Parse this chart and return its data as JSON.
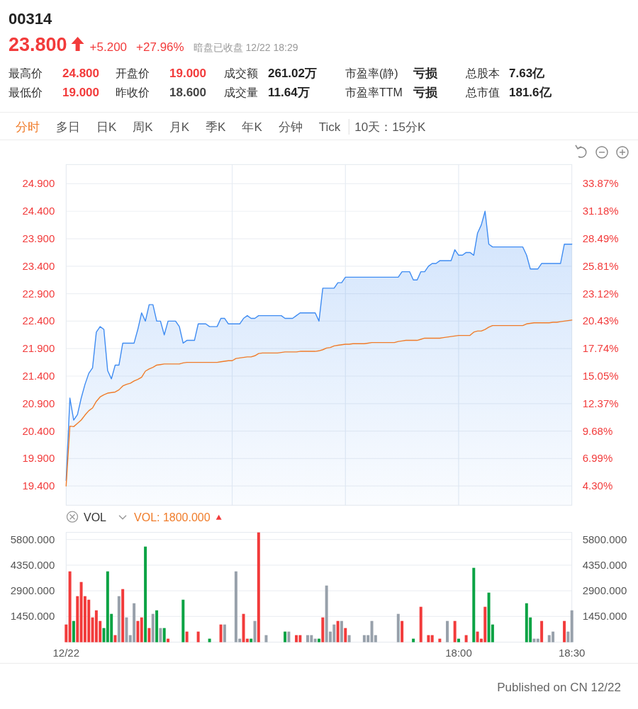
{
  "chart_data": [
    {
      "type": "other",
      "title": "00314",
      "annotations": [
        "23.800",
        "+5.200",
        "+27.96%",
        "暗盘已收盘 12/22 18:29"
      ],
      "colors": [
        "#f23b3b",
        "#f23b3b",
        "#f23b3b",
        "#999999"
      ]
    },
    {
      "type": "other",
      "annotations": [
        "最高价",
        "24.800",
        "开盘价",
        "19.000",
        "成交额",
        "261.02万",
        "市盈率(静)",
        "亏损",
        "总股本",
        "7.63亿",
        "最低价",
        "19.000",
        "昨收价",
        "18.600",
        "成交量",
        "11.64万",
        "市盈率TTM",
        "亏损",
        "总市值",
        "181.6亿"
      ],
      "colors": [
        "#333333",
        "#f23b3b",
        "#333333",
        "#f23b3b",
        "#333333",
        "#222222",
        "#333333",
        "#222222",
        "#333333",
        "#222222",
        "#333333",
        "#f23b3b",
        "#333333",
        "#444444",
        "#333333",
        "#222222",
        "#333333",
        "#222222",
        "#333333",
        "#222222"
      ]
    },
    {
      "type": "other",
      "annotations": [
        "分时",
        "多日",
        "日K",
        "周K",
        "月K",
        "季K",
        "年K",
        "分钟",
        "Tick",
        "10天：15分K"
      ],
      "colors": [
        "#f07c2a",
        "#555555",
        "#555555",
        "#555555",
        "#555555",
        "#555555",
        "#555555",
        "#555555",
        "#555555",
        "#555555"
      ]
    },
    {
      "type": "line",
      "x": [
        16.2667,
        16.2833,
        16.3,
        16.3167,
        16.3333,
        16.35,
        16.3667,
        16.3833,
        16.4,
        16.4167,
        16.4333,
        16.45,
        16.4667,
        16.4833,
        16.5,
        16.5167,
        16.5333,
        16.55,
        16.5667,
        16.5833,
        16.6,
        16.6167,
        16.6333,
        16.65,
        16.6667,
        16.6833,
        16.7,
        16.7167,
        16.7333,
        16.75,
        16.7667,
        16.7833,
        16.8,
        16.8167,
        16.8333,
        16.85,
        16.8667,
        16.8833,
        16.9,
        16.9167,
        16.9333,
        16.95,
        16.9667,
        16.9833,
        17,
        17.0167,
        17.0333,
        17.05,
        17.0667,
        17.0833,
        17.1,
        17.1167,
        17.1333,
        17.15,
        17.1667,
        17.1833,
        17.2,
        17.2167,
        17.2333,
        17.25,
        17.2667,
        17.2833,
        17.3,
        17.3167,
        17.3333,
        17.35,
        17.3667,
        17.3833,
        17.4,
        17.4167,
        17.4333,
        17.45,
        17.4667,
        17.4833,
        17.5,
        17.5167,
        17.5333,
        17.55,
        17.5667,
        17.5833,
        17.6,
        17.6167,
        17.6333,
        17.65,
        17.6667,
        17.6833,
        17.7,
        17.7167,
        17.7333,
        17.75,
        17.7667,
        17.7833,
        17.8,
        17.8167,
        17.8333,
        17.85,
        17.8667,
        17.8833,
        17.9,
        17.9167,
        17.9333,
        17.95,
        17.9667,
        17.9833,
        18,
        18.0167,
        18.0333,
        18.05,
        18.0667,
        18.0833,
        18.1,
        18.1167,
        18.1333,
        18.15,
        18.1667,
        18.1833,
        18.2,
        18.2167,
        18.2333,
        18.25,
        18.2667,
        18.2833,
        18.3,
        18.3167,
        18.3333,
        18.35,
        18.3667,
        18.3833,
        18.4,
        18.4167,
        18.4333,
        18.45,
        18.4667,
        18.4833,
        18.5
      ],
      "series": [
        {
          "type": "area",
          "color": "#3f8cf2",
          "values": [
            19.5,
            21.0,
            20.6,
            20.7,
            21.0,
            21.25,
            21.45,
            21.55,
            22.2,
            22.3,
            22.25,
            21.5,
            21.35,
            21.6,
            21.6,
            22.0,
            22.0,
            22.0,
            22.0,
            22.25,
            22.55,
            22.4,
            22.7,
            22.7,
            22.4,
            22.4,
            22.15,
            22.4,
            22.4,
            22.4,
            22.3,
            22.0,
            22.05,
            22.05,
            22.05,
            22.35,
            22.35,
            22.35,
            22.3,
            22.3,
            22.3,
            22.45,
            22.45,
            22.35,
            22.35,
            22.35,
            22.35,
            22.45,
            22.5,
            22.45,
            22.45,
            22.5,
            22.5,
            22.5,
            22.5,
            22.5,
            22.5,
            22.5,
            22.45,
            22.45,
            22.45,
            22.5,
            22.55,
            22.55,
            22.55,
            22.55,
            22.55,
            22.4,
            23.0,
            23.0,
            23.0,
            23.0,
            23.1,
            23.1,
            23.2,
            23.2,
            23.2,
            23.2,
            23.2,
            23.2,
            23.2,
            23.2,
            23.2,
            23.2,
            23.2,
            23.2,
            23.2,
            23.2,
            23.2,
            23.3,
            23.3,
            23.3,
            23.15,
            23.15,
            23.3,
            23.3,
            23.4,
            23.45,
            23.45,
            23.5,
            23.5,
            23.5,
            23.5,
            23.7,
            23.6,
            23.6,
            23.65,
            23.65,
            23.6,
            24.0,
            24.15,
            24.4,
            23.8,
            23.75,
            23.75,
            23.75,
            23.75,
            23.75,
            23.75,
            23.75,
            23.75,
            23.75,
            23.6,
            23.35,
            23.35,
            23.35,
            23.45,
            23.45,
            23.45,
            23.45,
            23.45,
            23.45,
            23.8,
            23.8,
            23.8
          ]
        },
        {
          "color": "#f07c2a",
          "values": [
            19.4,
            20.49,
            20.48,
            20.54,
            20.6,
            20.69,
            20.77,
            20.82,
            20.94,
            21.02,
            21.06,
            21.09,
            21.1,
            21.11,
            21.15,
            21.22,
            21.25,
            21.27,
            21.31,
            21.34,
            21.38,
            21.49,
            21.53,
            21.56,
            21.6,
            21.61,
            21.62,
            21.62,
            21.62,
            21.62,
            21.62,
            21.64,
            21.65,
            21.65,
            21.65,
            21.65,
            21.65,
            21.65,
            21.65,
            21.65,
            21.65,
            21.66,
            21.67,
            21.68,
            21.68,
            21.72,
            21.73,
            21.74,
            21.75,
            21.75,
            21.77,
            21.81,
            21.82,
            21.82,
            21.82,
            21.82,
            21.82,
            21.83,
            21.84,
            21.84,
            21.84,
            21.84,
            21.85,
            21.85,
            21.85,
            21.85,
            21.85,
            21.86,
            21.88,
            21.91,
            21.92,
            21.95,
            21.96,
            21.97,
            21.98,
            21.98,
            21.99,
            21.99,
            21.99,
            21.99,
            22.0,
            22.01,
            22.01,
            22.01,
            22.01,
            22.01,
            22.01,
            22.01,
            22.03,
            22.04,
            22.05,
            22.05,
            22.05,
            22.05,
            22.07,
            22.09,
            22.09,
            22.09,
            22.09,
            22.09,
            22.1,
            22.11,
            22.12,
            22.13,
            22.14,
            22.14,
            22.14,
            22.14,
            22.2,
            22.22,
            22.22,
            22.25,
            22.29,
            22.32,
            22.32,
            22.32,
            22.32,
            22.32,
            22.32,
            22.32,
            22.32,
            22.32,
            22.35,
            22.36,
            22.37,
            22.37,
            22.37,
            22.37,
            22.37,
            22.38,
            22.38,
            22.39,
            22.4,
            22.41,
            22.42
          ]
        }
      ],
      "xlim": [
        16.2667,
        18.5
      ],
      "xticks": [
        {
          "value": 17,
          "label": null
        },
        {
          "value": 17.5,
          "label": null
        },
        {
          "value": 18,
          "label": null
        }
      ],
      "ylim": [
        19.05,
        25.25
      ],
      "yticks": [
        {
          "value": 19.4,
          "label": "19.400"
        },
        {
          "value": 19.9,
          "label": "19.900"
        },
        {
          "value": 20.4,
          "label": "20.400"
        },
        {
          "value": 20.9,
          "label": "20.900"
        },
        {
          "value": 21.4,
          "label": "21.400"
        },
        {
          "value": 21.9,
          "label": "21.900"
        },
        {
          "value": 22.4,
          "label": "22.400"
        },
        {
          "value": 22.9,
          "label": "22.900"
        },
        {
          "value": 23.4,
          "label": "23.400"
        },
        {
          "value": 23.9,
          "label": "23.900"
        },
        {
          "value": 24.4,
          "label": "24.400"
        },
        {
          "value": 24.9,
          "label": "24.900"
        }
      ],
      "y2lim": [
        2.42,
        35.75
      ],
      "y2ticks": [
        {
          "value": 4.3,
          "label": "4.30%"
        },
        {
          "value": 6.99,
          "label": "6.99%"
        },
        {
          "value": 9.68,
          "label": "9.68%"
        },
        {
          "value": 12.37,
          "label": "12.37%"
        },
        {
          "value": 15.05,
          "label": "15.05%"
        },
        {
          "value": 17.74,
          "label": "17.74%"
        },
        {
          "value": 20.43,
          "label": "20.43%"
        },
        {
          "value": 23.12,
          "label": "23.12%"
        },
        {
          "value": 25.81,
          "label": "25.81%"
        },
        {
          "value": 28.49,
          "label": "28.49%"
        },
        {
          "value": 31.18,
          "label": "31.18%"
        },
        {
          "value": 33.87,
          "label": "33.87%"
        }
      ],
      "grid": true,
      "tick_labels": "y"
    },
    {
      "type": "bar",
      "title": "VOL",
      "annotations": [
        "VOL: 1800.000"
      ],
      "x": [
        16.2667,
        16.2833,
        16.3,
        16.3167,
        16.3333,
        16.35,
        16.3667,
        16.3833,
        16.4,
        16.4167,
        16.4333,
        16.45,
        16.4667,
        16.4833,
        16.5,
        16.5167,
        16.5333,
        16.55,
        16.5667,
        16.5833,
        16.6,
        16.6167,
        16.6333,
        16.65,
        16.6667,
        16.6833,
        16.7,
        16.7167,
        16.7833,
        16.8,
        16.85,
        16.9,
        16.95,
        16.9667,
        17.0167,
        17.0333,
        17.05,
        17.0667,
        17.0833,
        17.1,
        17.1167,
        17.15,
        17.2333,
        17.25,
        17.2833,
        17.3,
        17.3333,
        17.35,
        17.3667,
        17.3833,
        17.4,
        17.4167,
        17.4333,
        17.45,
        17.4667,
        17.4833,
        17.5,
        17.5167,
        17.5833,
        17.6,
        17.6167,
        17.6333,
        17.7333,
        17.75,
        17.8,
        17.8333,
        17.8667,
        17.8833,
        17.9167,
        17.95,
        17.9833,
        18,
        18.0333,
        18.0667,
        18.0833,
        18.1,
        18.1167,
        18.1333,
        18.15,
        18.3,
        18.3167,
        18.3333,
        18.35,
        18.3667,
        18.4,
        18.4167,
        18.4667,
        18.4833,
        18.5
      ],
      "values": [
        1000,
        4000,
        1200,
        2600,
        3400,
        2600,
        2400,
        1400,
        1800,
        1200,
        800,
        4000,
        1600,
        400,
        2600,
        3000,
        1400,
        400,
        2200,
        1200,
        1400,
        5400,
        800,
        1600,
        1800,
        800,
        800,
        200,
        2400,
        600,
        600,
        200,
        1000,
        1000,
        4000,
        200,
        1600,
        200,
        200,
        1200,
        6200,
        400,
        600,
        600,
        400,
        400,
        400,
        400,
        200,
        200,
        1400,
        3200,
        600,
        1000,
        1200,
        1200,
        800,
        400,
        400,
        400,
        1200,
        400,
        1600,
        1200,
        200,
        2000,
        400,
        400,
        200,
        1200,
        1200,
        200,
        400,
        4200,
        600,
        200,
        2000,
        2800,
        1000,
        2200,
        1400,
        200,
        200,
        1200,
        400,
        600,
        1200,
        600,
        1800
      ],
      "colors": [
        "#f23b3b",
        "#f23b3b",
        "#0aa344",
        "#f23b3b",
        "#f23b3b",
        "#f23b3b",
        "#f23b3b",
        "#f23b3b",
        "#f23b3b",
        "#f23b3b",
        "#0aa344",
        "#0aa344",
        "#0aa344",
        "#f23b3b",
        "#98a1ab",
        "#f23b3b",
        "#98a1ab",
        "#98a1ab",
        "#98a1ab",
        "#f23b3b",
        "#f23b3b",
        "#0aa344",
        "#f23b3b",
        "#98a1ab",
        "#0aa344",
        "#98a1ab",
        "#0aa344",
        "#f23b3b",
        "#0aa344",
        "#f23b3b",
        "#f23b3b",
        "#0aa344",
        "#f23b3b",
        "#98a1ab",
        "#98a1ab",
        "#98a1ab",
        "#f23b3b",
        "#f23b3b",
        "#0aa344",
        "#98a1ab",
        "#f23b3b",
        "#98a1ab",
        "#0aa344",
        "#98a1ab",
        "#f23b3b",
        "#f23b3b",
        "#98a1ab",
        "#98a1ab",
        "#98a1ab",
        "#0aa344",
        "#f23b3b",
        "#98a1ab",
        "#98a1ab",
        "#98a1ab",
        "#f23b3b",
        "#98a1ab",
        "#f23b3b",
        "#98a1ab",
        "#98a1ab",
        "#98a1ab",
        "#98a1ab",
        "#98a1ab",
        "#98a1ab",
        "#f23b3b",
        "#0aa344",
        "#f23b3b",
        "#f23b3b",
        "#f23b3b",
        "#f23b3b",
        "#98a1ab",
        "#f23b3b",
        "#0aa344",
        "#f23b3b",
        "#0aa344",
        "#f23b3b",
        "#f23b3b",
        "#f23b3b",
        "#0aa344",
        "#0aa344",
        "#0aa344",
        "#0aa344",
        "#98a1ab",
        "#98a1ab",
        "#f23b3b",
        "#98a1ab",
        "#98a1ab",
        "#f23b3b",
        "#98a1ab",
        "#98a1ab"
      ],
      "xlim": [
        16.2667,
        18.5
      ],
      "xticks": [
        {
          "value": 16.2667,
          "label": "12/22"
        },
        {
          "value": 18,
          "label": "18:00"
        },
        {
          "value": 18.5,
          "label": "18:30"
        }
      ],
      "ylim": [
        0,
        6200
      ],
      "yticks": [
        {
          "value": 1450,
          "label": "1450.000"
        },
        {
          "value": 2900,
          "label": "2900.000"
        },
        {
          "value": 4350,
          "label": "4350.000"
        },
        {
          "value": 5800,
          "label": "5800.000"
        }
      ],
      "y2lim": [
        0,
        6200
      ],
      "y2ticks": [
        {
          "value": 1450,
          "label": "1450.000"
        },
        {
          "value": 2900,
          "label": "2900.000"
        },
        {
          "value": 4350,
          "label": "4350.000"
        },
        {
          "value": 5800,
          "label": "5800.000"
        }
      ],
      "grid": "y"
    },
    {
      "type": "other",
      "annotations": [
        "Published on CN 12/22"
      ]
    }
  ]
}
